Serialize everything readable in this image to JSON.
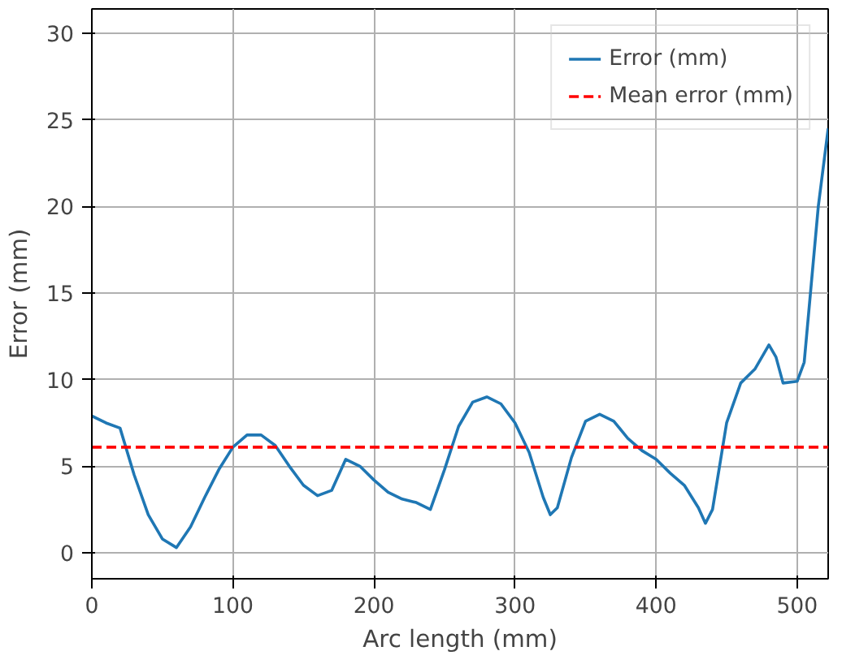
{
  "chart_data": {
    "type": "line",
    "xlabel": "Arc length (mm)",
    "ylabel": "Error (mm)",
    "xlim": [
      0,
      522
    ],
    "ylim": [
      -1.5,
      31.4
    ],
    "xticks": [
      0,
      100,
      200,
      300,
      400,
      500
    ],
    "yticks": [
      0,
      5,
      10,
      15,
      20,
      25,
      30
    ],
    "grid": true,
    "legend": "top right",
    "line_style": "solid",
    "series": [
      {
        "name": "Error (mm)",
        "color": "#1f77b4",
        "x": [
          0,
          10,
          20,
          30,
          40,
          50,
          60,
          70,
          80,
          90,
          100,
          110,
          120,
          130,
          140,
          150,
          160,
          170,
          180,
          190,
          200,
          210,
          220,
          230,
          240,
          250,
          260,
          270,
          280,
          290,
          300,
          310,
          320,
          325,
          330,
          340,
          350,
          360,
          370,
          380,
          390,
          400,
          410,
          420,
          430,
          435,
          440,
          450,
          460,
          470,
          480,
          485,
          490,
          500,
          505,
          510,
          515,
          522
        ],
        "values": [
          7.9,
          7.5,
          7.2,
          4.5,
          2.2,
          0.8,
          0.3,
          1.5,
          3.2,
          4.8,
          6.1,
          6.8,
          6.8,
          6.2,
          5.0,
          3.9,
          3.3,
          3.6,
          5.4,
          5.0,
          4.2,
          3.5,
          3.1,
          2.9,
          2.5,
          4.8,
          7.3,
          8.7,
          9.0,
          8.6,
          7.5,
          5.8,
          3.2,
          2.2,
          2.6,
          5.5,
          7.6,
          8.0,
          7.6,
          6.6,
          5.9,
          5.4,
          4.6,
          3.9,
          2.6,
          1.7,
          2.5,
          7.5,
          9.8,
          10.6,
          12.0,
          11.3,
          9.8,
          9.9,
          11.0,
          15.5,
          20.0,
          24.5
        ]
      }
    ],
    "ref_lines": [
      {
        "axis": "y",
        "value": 6.1,
        "label": "Mean error (mm)",
        "color": "#ff0000",
        "line_style": "dashed"
      }
    ]
  }
}
